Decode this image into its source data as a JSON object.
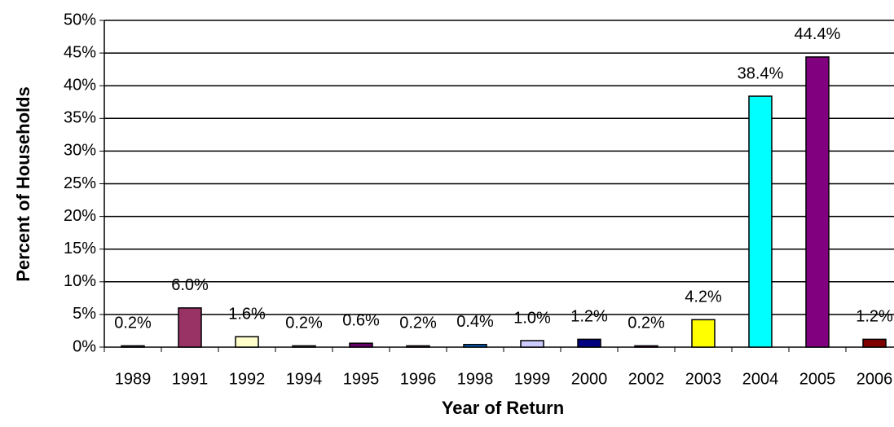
{
  "chart_data": {
    "type": "bar",
    "x_label": "Year of Return",
    "y_label": "Percent of Households",
    "categories": [
      "1989",
      "1991",
      "1992",
      "1994",
      "1995",
      "1996",
      "1998",
      "1999",
      "2000",
      "2002",
      "2003",
      "2004",
      "2005",
      "2006"
    ],
    "values": [
      0.2,
      6.0,
      1.6,
      0.2,
      0.6,
      0.2,
      0.4,
      1.0,
      1.2,
      0.2,
      4.2,
      38.4,
      44.4,
      1.2
    ],
    "value_labels": [
      "0.2%",
      "6.0%",
      "1.6%",
      "0.2%",
      "0.6%",
      "0.2%",
      "0.4%",
      "1.0%",
      "1.2%",
      "0.2%",
      "4.2%",
      "38.4%",
      "44.4%",
      "1.2%"
    ],
    "colors": [
      "#9999ff",
      "#993366",
      "#ffffcc",
      "#ccffff",
      "#660066",
      "#ff8080",
      "#0066cc",
      "#ccccff",
      "#000080",
      "#ff00ff",
      "#ffff00",
      "#00ffff",
      "#800080",
      "#800000"
    ],
    "ylim": [
      0,
      50
    ],
    "yticks": [
      {
        "value": 0,
        "label": "0%"
      },
      {
        "value": 5,
        "label": "5%"
      },
      {
        "value": 10,
        "label": "10%"
      },
      {
        "value": 15,
        "label": "15%"
      },
      {
        "value": 20,
        "label": "20%"
      },
      {
        "value": 25,
        "label": "25%"
      },
      {
        "value": 30,
        "label": "30%"
      },
      {
        "value": 35,
        "label": "35%"
      },
      {
        "value": 40,
        "label": "40%"
      },
      {
        "value": 45,
        "label": "45%"
      },
      {
        "value": 50,
        "label": "50%"
      }
    ],
    "grid": true
  }
}
